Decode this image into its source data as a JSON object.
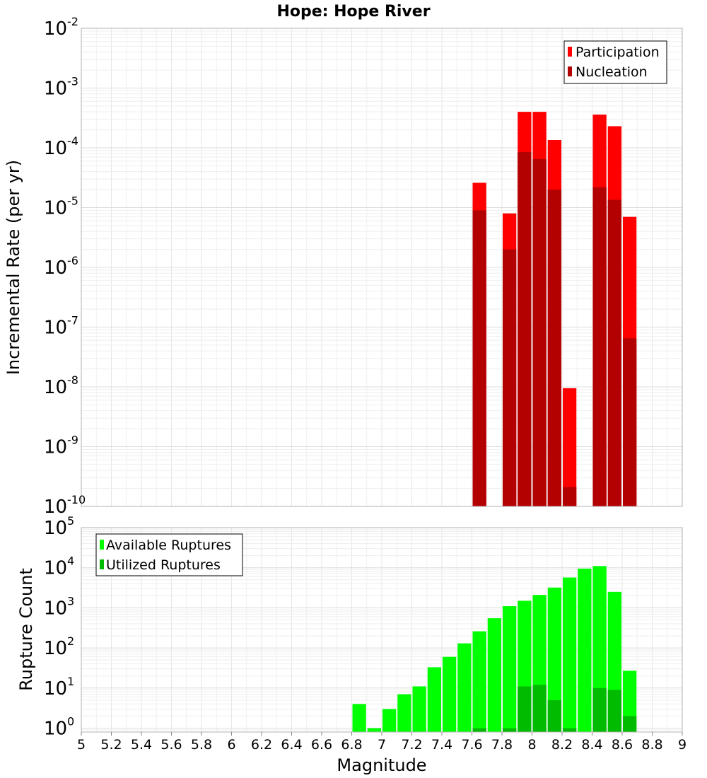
{
  "title": "Hope: Hope River",
  "chart_data": [
    {
      "type": "bar",
      "panel": "top",
      "scale": "log",
      "ylabel": "Incremental Rate (per yr)",
      "ylim": [
        1e-10,
        0.01
      ],
      "y_tick_exponents": [
        "-10",
        "-9",
        "-8",
        "-7",
        "-6",
        "-5",
        "-4",
        "-3",
        "-2"
      ],
      "grid": true,
      "legend_position": "top-right",
      "series": [
        {
          "name": "Participation",
          "color": "#ff0000",
          "x": [
            7.65,
            7.85,
            7.95,
            8.05,
            8.15,
            8.25,
            8.45,
            8.55,
            8.65
          ],
          "values": [
            2.6e-05,
            8e-06,
            0.0004,
            0.0004,
            0.000135,
            9.5e-09,
            0.00036,
            0.00023,
            7e-06
          ]
        },
        {
          "name": "Nucleation",
          "color": "#b30000",
          "x": [
            7.65,
            7.85,
            7.95,
            8.05,
            8.15,
            8.25,
            8.45,
            8.55,
            8.65
          ],
          "values": [
            9e-06,
            2e-06,
            8.5e-05,
            6.5e-05,
            2e-05,
            2.1e-10,
            2.2e-05,
            1.35e-05,
            6.5e-08
          ]
        }
      ]
    },
    {
      "type": "bar",
      "panel": "bottom",
      "scale": "log",
      "ylabel": "Rupture Count",
      "xlabel": "Magnitude",
      "ylim": [
        0.8,
        100000
      ],
      "y_tick_exponents": [
        "0",
        "1",
        "2",
        "3",
        "4",
        "5"
      ],
      "xlim": [
        5,
        9
      ],
      "x_ticks": [
        "5",
        "5.2",
        "5.4",
        "5.6",
        "5.8",
        "6",
        "6.2",
        "6.4",
        "6.6",
        "6.8",
        "7",
        "7.2",
        "7.4",
        "7.6",
        "7.8",
        "8",
        "8.2",
        "8.4",
        "8.6",
        "8.8",
        "9"
      ],
      "grid": true,
      "legend_position": "top-left",
      "series": [
        {
          "name": "Available Ruptures",
          "color": "#00ff00",
          "x": [
            6.85,
            6.95,
            7.05,
            7.15,
            7.25,
            7.35,
            7.45,
            7.55,
            7.65,
            7.75,
            7.85,
            7.95,
            8.05,
            8.15,
            8.25,
            8.35,
            8.45,
            8.55,
            8.65
          ],
          "values": [
            4,
            1,
            3,
            7,
            11,
            33,
            60,
            130,
            260,
            550,
            1100,
            1500,
            2100,
            3200,
            5700,
            9500,
            11000,
            2500,
            27
          ]
        },
        {
          "name": "Utilized Ruptures",
          "color": "#00bb00",
          "x": [
            7.65,
            7.85,
            7.95,
            8.05,
            8.15,
            8.25,
            8.45,
            8.55,
            8.65
          ],
          "values": [
            1,
            1,
            11,
            12,
            5,
            1,
            10,
            9,
            2
          ]
        }
      ]
    }
  ]
}
